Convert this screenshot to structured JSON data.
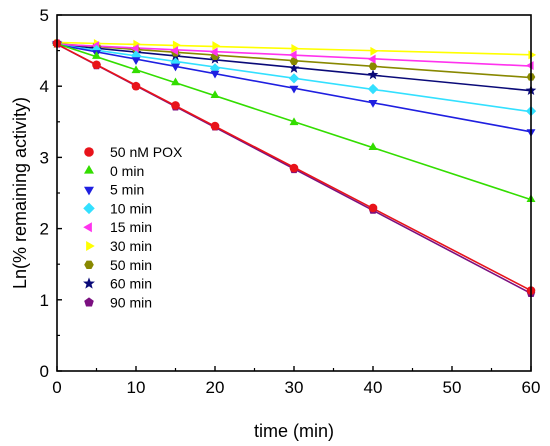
{
  "chart_data": {
    "type": "scatter",
    "title": "",
    "xlabel": "time (min)",
    "ylabel": "Ln(% remaining activity)",
    "xlim": [
      0,
      60
    ],
    "ylim": [
      0,
      5
    ],
    "xticks": [
      "0",
      "10",
      "20",
      "30",
      "40",
      "50",
      "60"
    ],
    "yticks": [
      "0",
      "1",
      "2",
      "3",
      "4",
      "5"
    ],
    "grid": false,
    "legend_position": "left",
    "fit_lines": true,
    "series": [
      {
        "name": "50 nM POX",
        "color": "#e8131a",
        "marker": "circle",
        "x": [
          0,
          5,
          10,
          15,
          20,
          30,
          40,
          60
        ],
        "y": [
          4.6,
          4.3,
          4.0,
          3.73,
          3.44,
          2.85,
          2.29,
          1.13
        ]
      },
      {
        "name": "0 min",
        "color": "#33dd00",
        "marker": "triangle-up",
        "x": [
          0,
          5,
          10,
          15,
          20,
          30,
          40,
          60
        ],
        "y": [
          4.6,
          4.42,
          4.22,
          4.05,
          3.87,
          3.49,
          3.14,
          2.41
        ]
      },
      {
        "name": "5 min",
        "color": "#1f1fe0",
        "marker": "triangle-down",
        "x": [
          0,
          5,
          10,
          15,
          20,
          30,
          40,
          60
        ],
        "y": [
          4.6,
          4.47,
          4.37,
          4.28,
          4.18,
          3.97,
          3.77,
          3.36
        ]
      },
      {
        "name": "10 min",
        "color": "#33e0ff",
        "marker": "diamond",
        "x": [
          0,
          5,
          10,
          15,
          20,
          30,
          40,
          60
        ],
        "y": [
          4.6,
          4.51,
          4.43,
          4.33,
          4.25,
          4.11,
          3.96,
          3.65
        ]
      },
      {
        "name": "15 min",
        "color": "#ff33ee",
        "marker": "triangle-left",
        "x": [
          0,
          5,
          10,
          15,
          20,
          30,
          40,
          60
        ],
        "y": [
          4.6,
          4.57,
          4.53,
          4.5,
          4.48,
          4.44,
          4.38,
          4.29
        ]
      },
      {
        "name": "30 min",
        "color": "#ffff00",
        "marker": "triangle-right",
        "x": [
          0,
          5,
          10,
          15,
          20,
          30,
          40,
          60
        ],
        "y": [
          4.6,
          4.6,
          4.59,
          4.58,
          4.57,
          4.53,
          4.49,
          4.44
        ]
      },
      {
        "name": "50 min",
        "color": "#888800",
        "marker": "hexagon",
        "x": [
          0,
          5,
          10,
          15,
          20,
          30,
          40,
          60
        ],
        "y": [
          4.6,
          4.57,
          4.52,
          4.47,
          4.42,
          4.35,
          4.28,
          4.13
        ]
      },
      {
        "name": "60 min",
        "color": "#0a0a78",
        "marker": "star",
        "x": [
          0,
          5,
          10,
          15,
          20,
          30,
          40,
          60
        ],
        "y": [
          4.6,
          4.53,
          4.47,
          4.42,
          4.38,
          4.25,
          4.16,
          3.94
        ]
      },
      {
        "name": "90 min",
        "color": "#7b1080",
        "marker": "pentagon",
        "x": [
          0,
          5,
          10,
          15,
          20,
          30,
          40,
          60
        ],
        "y": [
          4.6,
          4.29,
          4.0,
          3.71,
          3.43,
          2.83,
          2.26,
          1.09
        ]
      }
    ]
  }
}
